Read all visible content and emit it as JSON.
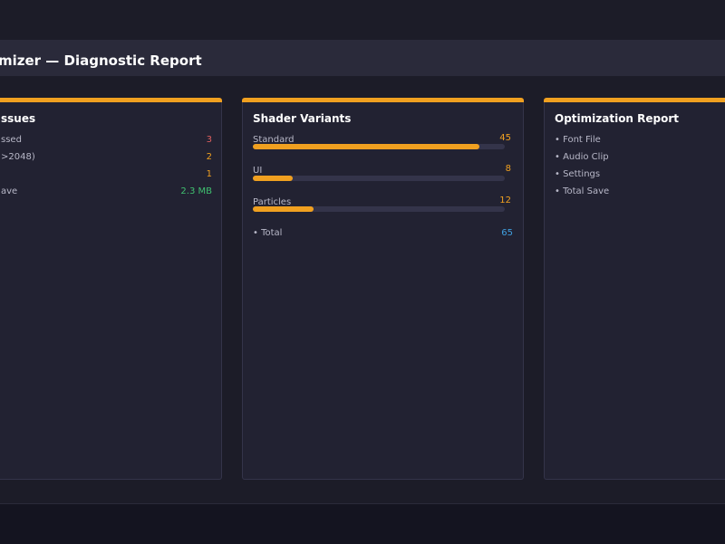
{
  "header": {
    "title": "mizer — Diagnostic Report"
  },
  "panels": {
    "issues": {
      "heading": "ssues",
      "rows": [
        {
          "label": "ssed",
          "value": "3",
          "color": "#e06060"
        },
        {
          "label": ">2048)",
          "value": "2",
          "color": "#f0a020"
        },
        {
          "label": "",
          "value": "1",
          "color": "#f0a020"
        },
        {
          "label": "ave",
          "value": "2.3 MB",
          "color": "#40c070"
        }
      ]
    },
    "shader": {
      "heading": "Shader Variants",
      "bars": [
        {
          "label": "Standard",
          "value": "45",
          "fraction": 0.9
        },
        {
          "label": "UI",
          "value": "8",
          "fraction": 0.16
        },
        {
          "label": "Particles",
          "value": "12",
          "fraction": 0.24
        }
      ],
      "total_label": "• Total",
      "total_value": "65",
      "total_color": "#40a0e0"
    },
    "optimization": {
      "heading": "Optimization Report",
      "items": [
        "• Font File",
        "• Audio Clip",
        "• Settings",
        "• Total Save"
      ]
    }
  },
  "colors": {
    "accent": "#f0a020",
    "panel_bg": "#222232",
    "page_bg": "#1c1c28"
  }
}
